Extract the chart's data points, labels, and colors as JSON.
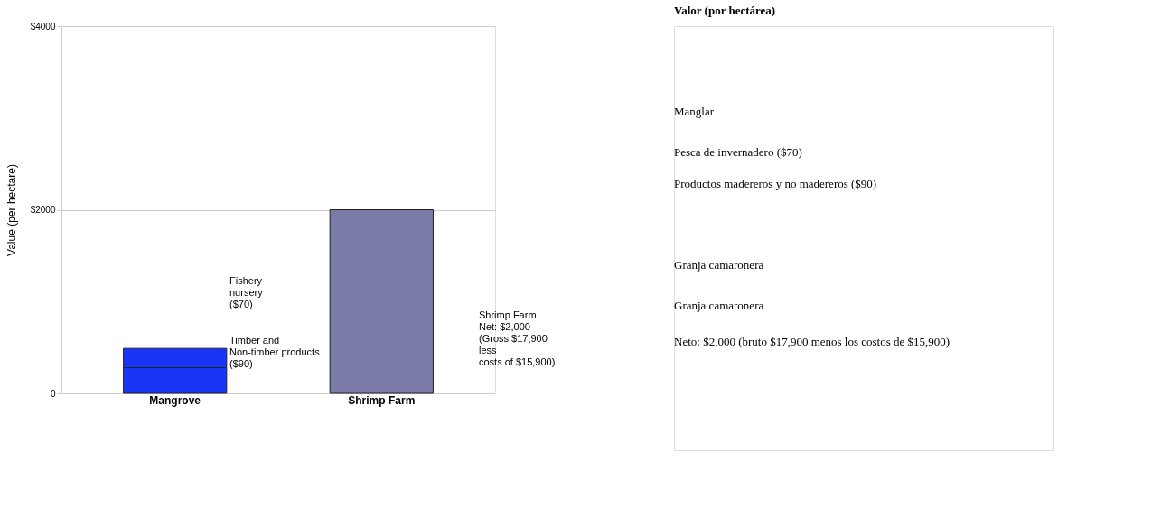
{
  "chart_data": [
    {
      "type": "bar",
      "ylabel": "Value (per hectare)",
      "categories": [
        "Mangrove",
        "Shrimp Farm"
      ],
      "stacked": true,
      "series": [
        {
          "color": "#1a35f5",
          "values": [
            280,
            null
          ]
        },
        {
          "color": "#1a35f5",
          "values": [
            210,
            null
          ]
        },
        {
          "color": "#7b7ba8",
          "values": [
            null,
            2000
          ]
        }
      ],
      "ylim": [
        0,
        4000
      ],
      "yticks": [
        0,
        {
          "value": 2000,
          "label": "$2000"
        },
        {
          "value": 4000,
          "label": "$4000"
        }
      ],
      "grid": "y",
      "legend": false,
      "annotations": [
        "Fishery\nnursery\n($70)",
        "Timber and\nNon-timber products\n($90)",
        "Shrimp Farm\nNet: $2,000\n(Gross $17,900\nless\ncosts of $15,900)"
      ]
    },
    {
      "type": "other",
      "title": "Valor (por hectárea)",
      "annotations": [
        "Manglar",
        "Pesca de invernadero ($70)",
        "Productos madereros y no madereros ($90)",
        "Granja camaronera",
        "Granja camaronera",
        "Neto: $2,000 (bruto $17,900 menos los costos de $15,900)"
      ]
    }
  ]
}
